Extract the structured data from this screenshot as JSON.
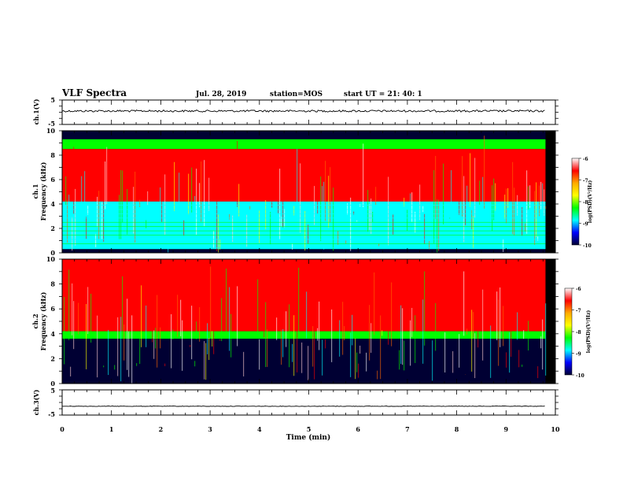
{
  "header": {
    "title": "VLF Spectra",
    "date": "Jul. 28, 2019",
    "station": "station=MOS",
    "start": "start UT = 21: 40: 1"
  },
  "chart_data": [
    {
      "type": "line",
      "ylabel": "ch.1(V)",
      "ylim": [
        -5,
        5
      ],
      "y_ticks": [
        "5",
        "-5"
      ],
      "series": [
        {
          "x": [
            0,
            9.8
          ],
          "y": [
            0.5,
            0.5
          ]
        }
      ]
    },
    {
      "type": "heatmap",
      "ylabel": "ch.1\nFrequency (kHz)",
      "ylim": [
        0,
        10
      ],
      "y_ticks": [
        "0",
        "2",
        "4",
        "6",
        "8",
        "10"
      ],
      "data_xlim": [
        0,
        9.8
      ],
      "colorbar": {
        "label": "log(PSD)(V²/Hz)",
        "range": [
          -10,
          -6
        ],
        "ticks": [
          "-6",
          "-7",
          "-8",
          "-9",
          "-10"
        ],
        "colors": [
          "#ffffff",
          "#ff0000",
          "#ffaa00",
          "#ffff00",
          "#00ff00",
          "#00ffff",
          "#0000ff",
          "#000033"
        ]
      },
      "bands": [
        {
          "f_min": 9.3,
          "f_max": 10,
          "level": -10
        },
        {
          "f_min": 8.5,
          "f_max": 9.3,
          "level": -8.5
        },
        {
          "f_min": 4.2,
          "f_max": 8.5,
          "level": -6.8
        },
        {
          "f_min": 0.3,
          "f_max": 4.2,
          "level": -8.8
        },
        {
          "f_min": 0,
          "f_max": 0.3,
          "level": -10
        }
      ]
    },
    {
      "type": "heatmap",
      "ylabel": "ch.2\nFrequency (kHz)",
      "ylim": [
        0,
        10
      ],
      "y_ticks": [
        "0",
        "2",
        "4",
        "6",
        "8",
        "10"
      ],
      "data_xlim": [
        0,
        9.8
      ],
      "colorbar": {
        "label": "log(PSD)(V²/Hz)",
        "range": [
          -10,
          -6
        ],
        "ticks": [
          "-6",
          "-7",
          "-8",
          "-9",
          "-10"
        ],
        "colors": [
          "#ffffff",
          "#ff0000",
          "#ffaa00",
          "#ffff00",
          "#00ff00",
          "#00ffff",
          "#0000ff",
          "#000033"
        ]
      },
      "bands": [
        {
          "f_min": 4.2,
          "f_max": 10,
          "level": -6.5
        },
        {
          "f_min": 3.6,
          "f_max": 4.2,
          "level": -8.2
        },
        {
          "f_min": 0,
          "f_max": 3.6,
          "level": -10
        }
      ]
    },
    {
      "type": "line",
      "ylabel": "ch.3(V)",
      "ylim": [
        -5,
        5
      ],
      "y_ticks": [
        "5",
        "-5"
      ],
      "xlabel": "Time (min)",
      "xlim": [
        0,
        10
      ],
      "x_ticks": [
        "0",
        "1",
        "2",
        "3",
        "4",
        "5",
        "6",
        "7",
        "8",
        "9",
        "10"
      ],
      "series": [
        {
          "x": [
            0,
            9.8
          ],
          "y": [
            -1.5,
            -1.5
          ]
        }
      ]
    }
  ]
}
